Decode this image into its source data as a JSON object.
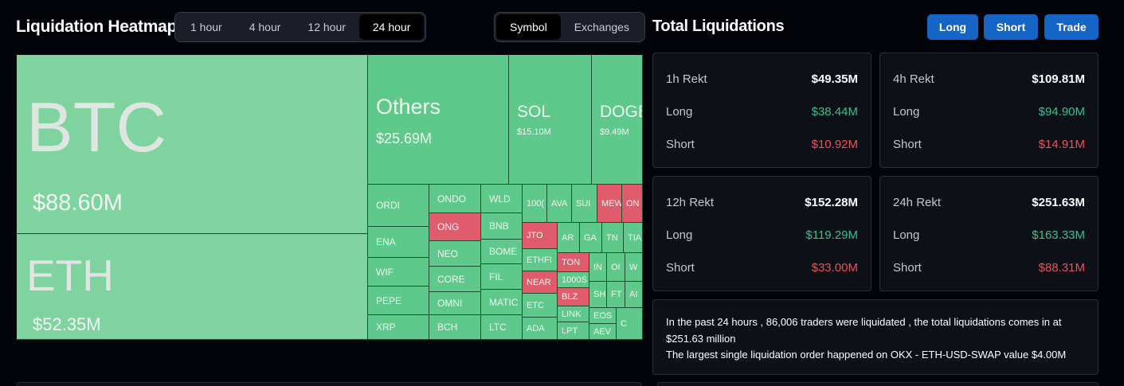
{
  "heatmap": {
    "title": "Liquidation Heatmap",
    "time_tabs": [
      "1 hour",
      "4 hour",
      "12 hour",
      "24 hour"
    ],
    "active_time_tab": "24 hour",
    "view_tabs": [
      "Symbol",
      "Exchanges"
    ],
    "active_view_tab": "Symbol",
    "tiles": {
      "btc": {
        "symbol": "BTC",
        "value": "$88.60M"
      },
      "eth": {
        "symbol": "ETH",
        "value": "$52.35M"
      },
      "others": {
        "symbol": "Others",
        "value": "$25.69M"
      },
      "sol": {
        "symbol": "SOL",
        "value": "$15.10M"
      },
      "doge": {
        "symbol": "DOGE",
        "value": "$9.49M"
      },
      "ordi": {
        "symbol": "ORDI"
      },
      "ena": {
        "symbol": "ENA"
      },
      "wif": {
        "symbol": "WIF"
      },
      "pepe": {
        "symbol": "PEPE"
      },
      "xrp": {
        "symbol": "XRP"
      },
      "ondo": {
        "symbol": "ONDO"
      },
      "ong": {
        "symbol": "ONG"
      },
      "neo": {
        "symbol": "NEO"
      },
      "core": {
        "symbol": "CORE"
      },
      "omni": {
        "symbol": "OMNI"
      },
      "bch": {
        "symbol": "BCH"
      },
      "wld": {
        "symbol": "WLD"
      },
      "bnb": {
        "symbol": "BNB"
      },
      "bome": {
        "symbol": "BOME"
      },
      "fil": {
        "symbol": "FIL"
      },
      "matic": {
        "symbol": "MATIC"
      },
      "ltc": {
        "symbol": "LTC"
      },
      "thousand": {
        "symbol": "100("
      },
      "ava": {
        "symbol": "AVA"
      },
      "sui": {
        "symbol": "SUI"
      },
      "mew": {
        "symbol": "MEW"
      },
      "on": {
        "symbol": "ON"
      },
      "jto": {
        "symbol": "JTO"
      },
      "ar": {
        "symbol": "AR"
      },
      "ga": {
        "symbol": "GA"
      },
      "tn": {
        "symbol": "TN"
      },
      "tia": {
        "symbol": "TIA"
      },
      "ethfi": {
        "symbol": "ETHFI"
      },
      "ton": {
        "symbol": "TON"
      },
      "in": {
        "symbol": "IN"
      },
      "oi": {
        "symbol": "OI"
      },
      "w": {
        "symbol": "W"
      },
      "near": {
        "symbol": "NEAR"
      },
      "thousands": {
        "symbol": "1000S"
      },
      "etc": {
        "symbol": "ETC"
      },
      "blz": {
        "symbol": "BLZ"
      },
      "sh": {
        "symbol": "SH"
      },
      "ft": {
        "symbol": "FT"
      },
      "ai": {
        "symbol": "AI"
      },
      "link": {
        "symbol": "LINK"
      },
      "ada": {
        "symbol": "ADA"
      },
      "lpt": {
        "symbol": "LPT"
      },
      "eos": {
        "symbol": "EOS"
      },
      "aev": {
        "symbol": "AEV"
      },
      "c": {
        "symbol": "C"
      }
    }
  },
  "totals": {
    "title": "Total Liquidations",
    "buttons": {
      "long": "Long",
      "short": "Short",
      "trade": "Trade"
    },
    "long_label": "Long",
    "short_label": "Short",
    "cards": {
      "h1": {
        "label": "1h Rekt",
        "total": "$49.35M",
        "long": "$38.44M",
        "short": "$10.92M"
      },
      "h4": {
        "label": "4h Rekt",
        "total": "$109.81M",
        "long": "$94.90M",
        "short": "$14.91M"
      },
      "h12": {
        "label": "12h Rekt",
        "total": "$152.28M",
        "long": "$119.29M",
        "short": "$33.00M"
      },
      "h24": {
        "label": "24h Rekt",
        "total": "$251.63M",
        "long": "$163.33M",
        "short": "$88.31M"
      }
    },
    "summary": {
      "line1": "In the past 24 hours , 86,006 traders were liquidated , the total liquidations comes in at $251.63 million",
      "line2": "The largest single liquidation order happened on OKX - ETH-USD-SWAP value $4.00M"
    }
  },
  "colors": {
    "accent": "#1565c7",
    "tile_green": "#5ec98b",
    "tile_light_green": "#7fd39f",
    "tile_red": "#e05b6c",
    "long_green": "#31c48d",
    "short_red": "#f0505e"
  }
}
